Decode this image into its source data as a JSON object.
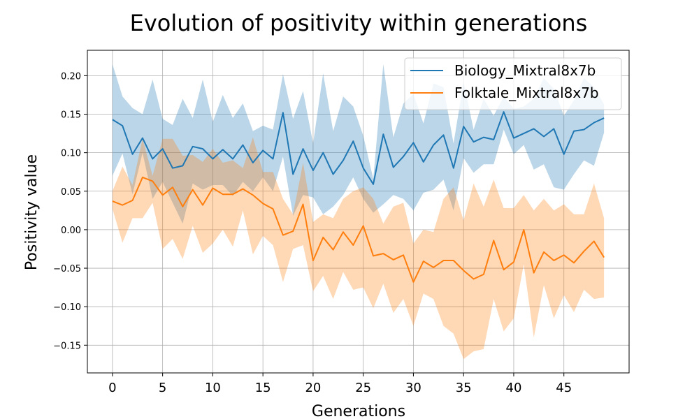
{
  "chart_data": {
    "type": "line",
    "title": "Evolution of positivity within generations",
    "xlabel": "Generations",
    "ylabel": "Positivity value",
    "xlim": [
      -2.5,
      51.5
    ],
    "ylim": [
      -0.186,
      0.233
    ],
    "xticks": [
      0,
      5,
      10,
      15,
      20,
      25,
      30,
      35,
      40,
      45
    ],
    "yticks": [
      -0.15,
      -0.1,
      -0.05,
      0.0,
      0.05,
      0.1,
      0.15,
      0.2
    ],
    "ytick_labels": [
      "−0.15",
      "−0.10",
      "−0.05",
      "0.00",
      "0.05",
      "0.10",
      "0.15",
      "0.20"
    ],
    "grid": true,
    "legend_position": "top-right",
    "x": [
      0,
      1,
      2,
      3,
      4,
      5,
      6,
      7,
      8,
      9,
      10,
      11,
      12,
      13,
      14,
      15,
      16,
      17,
      18,
      19,
      20,
      21,
      22,
      23,
      24,
      25,
      26,
      27,
      28,
      29,
      30,
      31,
      32,
      33,
      34,
      35,
      36,
      37,
      38,
      39,
      40,
      41,
      42,
      43,
      44,
      45,
      46,
      47,
      48,
      49
    ],
    "series": [
      {
        "name": "Biology_Mixtral8x7b",
        "color": "#1f77b4",
        "values": [
          0.143,
          0.135,
          0.098,
          0.119,
          0.092,
          0.105,
          0.08,
          0.083,
          0.108,
          0.105,
          0.092,
          0.104,
          0.092,
          0.11,
          0.087,
          0.103,
          0.092,
          0.152,
          0.072,
          0.105,
          0.077,
          0.1,
          0.072,
          0.09,
          0.115,
          0.08,
          0.059,
          0.124,
          0.081,
          0.095,
          0.113,
          0.088,
          0.11,
          0.123,
          0.08,
          0.134,
          0.114,
          0.12,
          0.117,
          0.153,
          0.119,
          0.125,
          0.131,
          0.121,
          0.131,
          0.098,
          0.128,
          0.13,
          0.139,
          0.145
        ],
        "upper": [
          0.215,
          0.173,
          0.158,
          0.15,
          0.195,
          0.144,
          0.136,
          0.17,
          0.145,
          0.195,
          0.14,
          0.175,
          0.145,
          0.164,
          0.128,
          0.135,
          0.13,
          0.202,
          0.144,
          0.18,
          0.112,
          0.203,
          0.128,
          0.173,
          0.16,
          0.122,
          0.066,
          0.215,
          0.12,
          0.164,
          0.176,
          0.138,
          0.19,
          0.185,
          0.112,
          0.192,
          0.13,
          0.17,
          0.148,
          0.173,
          0.157,
          0.16,
          0.17,
          0.197,
          0.183,
          0.148,
          0.168,
          0.197,
          0.185,
          0.163
        ],
        "lower": [
          0.07,
          0.099,
          0.046,
          0.1,
          0.04,
          0.062,
          0.035,
          0.008,
          0.06,
          0.052,
          0.058,
          0.058,
          0.044,
          0.062,
          0.05,
          0.068,
          0.05,
          0.095,
          0.018,
          0.045,
          0.042,
          0.02,
          0.03,
          0.045,
          0.068,
          0.04,
          0.022,
          0.033,
          0.045,
          0.04,
          0.025,
          0.048,
          0.052,
          0.065,
          0.025,
          0.093,
          0.074,
          0.085,
          0.085,
          0.13,
          0.098,
          0.11,
          0.078,
          0.085,
          0.055,
          0.052,
          0.072,
          0.09,
          0.083,
          0.126
        ]
      },
      {
        "name": "Folktale_Mixtral8x7b",
        "color": "#ff7f0e",
        "values": [
          0.037,
          0.032,
          0.038,
          0.068,
          0.063,
          0.045,
          0.055,
          0.03,
          0.052,
          0.032,
          0.054,
          0.046,
          0.046,
          0.053,
          0.045,
          0.034,
          0.027,
          -0.007,
          -0.002,
          0.033,
          -0.04,
          -0.01,
          -0.026,
          -0.003,
          -0.02,
          0.005,
          -0.034,
          -0.031,
          -0.039,
          -0.033,
          -0.068,
          -0.041,
          -0.049,
          -0.04,
          -0.04,
          -0.053,
          -0.064,
          -0.058,
          -0.014,
          -0.052,
          -0.042,
          0.0,
          -0.056,
          -0.029,
          -0.04,
          -0.033,
          -0.043,
          -0.028,
          -0.015,
          -0.036
        ],
        "upper": [
          0.05,
          0.082,
          0.058,
          0.118,
          0.07,
          0.118,
          0.118,
          0.096,
          0.097,
          0.088,
          0.105,
          0.087,
          0.09,
          0.08,
          0.12,
          0.075,
          0.075,
          0.04,
          0.02,
          0.087,
          0.01,
          0.02,
          0.015,
          0.04,
          0.05,
          0.055,
          0.04,
          0.008,
          0.03,
          0.035,
          -0.018,
          0.0,
          -0.003,
          0.04,
          0.055,
          0.012,
          0.06,
          0.03,
          0.065,
          0.028,
          0.028,
          0.045,
          0.025,
          0.04,
          0.025,
          0.033,
          0.02,
          0.02,
          0.06,
          0.015
        ],
        "lower": [
          0.027,
          -0.017,
          0.015,
          0.015,
          0.035,
          -0.025,
          -0.012,
          -0.038,
          0.005,
          -0.03,
          -0.018,
          0.0,
          -0.022,
          0.025,
          -0.032,
          -0.008,
          -0.02,
          -0.068,
          -0.025,
          -0.02,
          -0.08,
          -0.06,
          -0.09,
          -0.055,
          -0.078,
          -0.075,
          -0.102,
          -0.07,
          -0.108,
          -0.09,
          -0.125,
          -0.083,
          -0.09,
          -0.125,
          -0.135,
          -0.168,
          -0.158,
          -0.155,
          -0.09,
          -0.132,
          -0.115,
          -0.045,
          -0.14,
          -0.072,
          -0.115,
          -0.085,
          -0.107,
          -0.078,
          -0.09,
          -0.088
        ]
      }
    ]
  }
}
